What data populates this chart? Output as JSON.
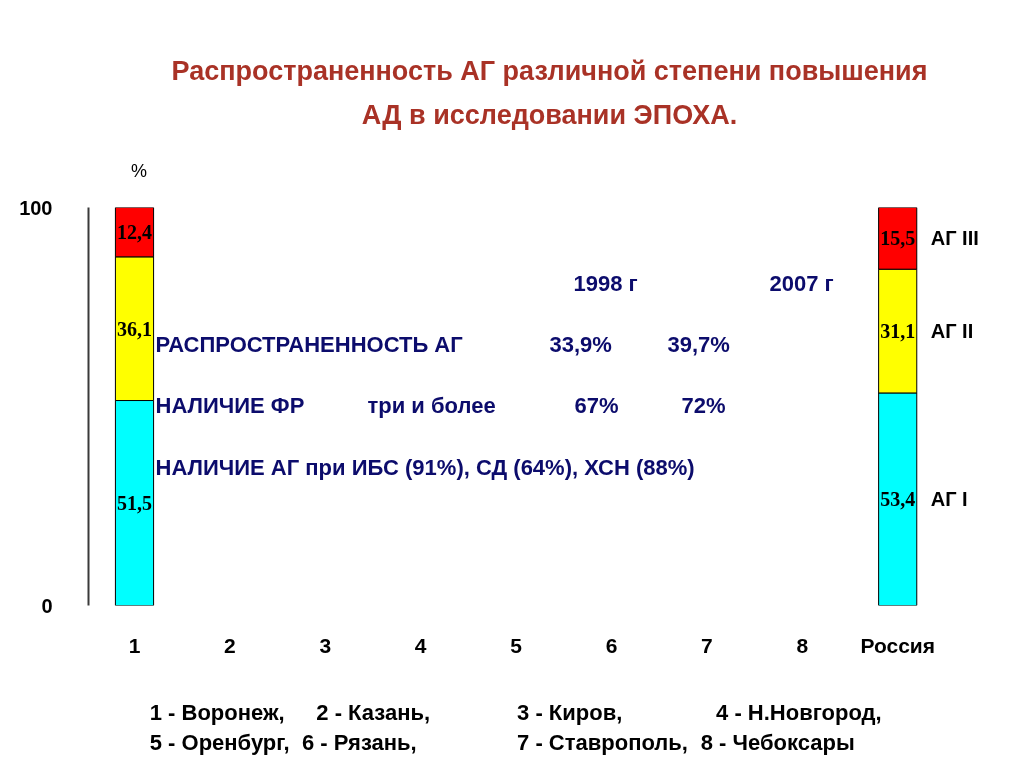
{
  "chart_data": {
    "type": "bar",
    "title": "Распространенность АГ различной степени повышения АД в исследовании ЭПОХА.",
    "ylabel": "%",
    "categories": [
      "1",
      "2",
      "3",
      "4",
      "5",
      "6",
      "7",
      "8",
      "Россия"
    ],
    "stacked": true,
    "series": [
      {
        "name": "АГ I",
        "color": "#00ffff",
        "values": [
          51.5,
          null,
          null,
          null,
          null,
          null,
          null,
          null,
          53.4
        ],
        "value_labels": [
          "51,5",
          null,
          null,
          null,
          null,
          null,
          null,
          null,
          "53,4"
        ]
      },
      {
        "name": "АГ II",
        "color": "#ffff00",
        "values": [
          36.1,
          null,
          null,
          null,
          null,
          null,
          null,
          null,
          31.1
        ],
        "value_labels": [
          "36,1",
          null,
          null,
          null,
          null,
          null,
          null,
          null,
          "31,1"
        ]
      },
      {
        "name": "АГ III",
        "color": "#ff0000",
        "values": [
          12.4,
          null,
          null,
          null,
          null,
          null,
          null,
          null,
          15.5
        ],
        "value_labels": [
          "12,4",
          null,
          null,
          null,
          null,
          null,
          null,
          null,
          "15,5"
        ]
      }
    ],
    "ylim": [
      0,
      100
    ],
    "yticks": [
      0,
      100
    ],
    "annotations": [
      "1998 г",
      "2007 г",
      "РАСПРОСТРАНЕННОСТЬ АГ",
      "33,9%",
      "39,7%",
      "НАЛИЧИЕ ФР",
      "три и более",
      "67%",
      "72%",
      "НАЛИЧИЕ АГ при ИБС (91%), СД (64%), ХСН (88%)",
      "1 - Воронеж,",
      "2 - Казань,",
      "3 - Киров,",
      "4 - Н.Новгород,",
      "5 - Оренбург,",
      "6 - Рязань,",
      "7 - Ставрополь,",
      "8 - Чебоксары"
    ]
  }
}
